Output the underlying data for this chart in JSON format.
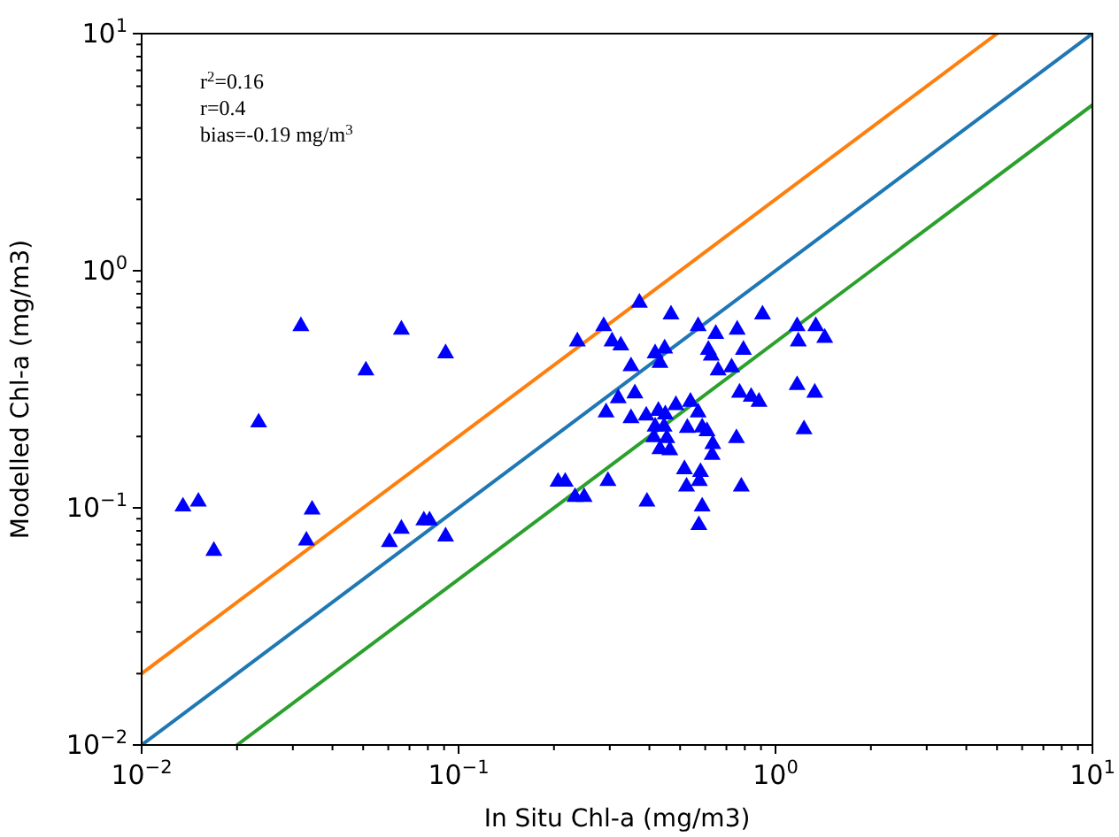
{
  "chart_data": {
    "type": "scatter",
    "xlabel": "In Situ Chl-a (mg/m3)",
    "ylabel": "Modelled Chl-a (mg/m3)",
    "log": "xy",
    "grid": false,
    "marker": "triangle",
    "annotations": [
      "r$^{2}$=0.16",
      "r=0.4",
      "bias=-0.19 mg/m$^{3}$"
    ],
    "xlim": [
      0.01,
      10
    ],
    "ylim": [
      0.01,
      10
    ],
    "xticks": [
      {
        "value": 0.01,
        "label": "10$^{−2}$"
      },
      {
        "value": 0.02,
        "label": null
      },
      {
        "value": 0.03,
        "label": null
      },
      {
        "value": 0.04,
        "label": null
      },
      {
        "value": 0.05,
        "label": null
      },
      {
        "value": 0.06,
        "label": null
      },
      {
        "value": 0.07,
        "label": null
      },
      {
        "value": 0.08,
        "label": null
      },
      {
        "value": 0.09,
        "label": null
      },
      {
        "value": 0.1,
        "label": "10$^{−1}$"
      },
      {
        "value": 0.2,
        "label": null
      },
      {
        "value": 0.3,
        "label": null
      },
      {
        "value": 0.4,
        "label": null
      },
      {
        "value": 0.5,
        "label": null
      },
      {
        "value": 0.6,
        "label": null
      },
      {
        "value": 0.7,
        "label": null
      },
      {
        "value": 0.8,
        "label": null
      },
      {
        "value": 0.9,
        "label": null
      },
      {
        "value": 1,
        "label": "10$^{0}$"
      },
      {
        "value": 2,
        "label": null
      },
      {
        "value": 3,
        "label": null
      },
      {
        "value": 4,
        "label": null
      },
      {
        "value": 5,
        "label": null
      },
      {
        "value": 6,
        "label": null
      },
      {
        "value": 7,
        "label": null
      },
      {
        "value": 8,
        "label": null
      },
      {
        "value": 9,
        "label": null
      },
      {
        "value": 10,
        "label": "10$^{1}$"
      }
    ],
    "yticks": [
      {
        "value": 0.01,
        "label": "10$^{−2}$"
      },
      {
        "value": 0.02,
        "label": null
      },
      {
        "value": 0.03,
        "label": null
      },
      {
        "value": 0.04,
        "label": null
      },
      {
        "value": 0.05,
        "label": null
      },
      {
        "value": 0.06,
        "label": null
      },
      {
        "value": 0.07,
        "label": null
      },
      {
        "value": 0.08,
        "label": null
      },
      {
        "value": 0.09,
        "label": null
      },
      {
        "value": 0.1,
        "label": "10$^{−1}$"
      },
      {
        "value": 0.2,
        "label": null
      },
      {
        "value": 0.3,
        "label": null
      },
      {
        "value": 0.4,
        "label": null
      },
      {
        "value": 0.5,
        "label": null
      },
      {
        "value": 0.6,
        "label": null
      },
      {
        "value": 0.7,
        "label": null
      },
      {
        "value": 0.8,
        "label": null
      },
      {
        "value": 0.9,
        "label": null
      },
      {
        "value": 1,
        "label": "10$^{0}$"
      },
      {
        "value": 2,
        "label": null
      },
      {
        "value": 3,
        "label": null
      },
      {
        "value": 4,
        "label": null
      },
      {
        "value": 5,
        "label": null
      },
      {
        "value": 6,
        "label": null
      },
      {
        "value": 7,
        "label": null
      },
      {
        "value": 8,
        "label": null
      },
      {
        "value": 9,
        "label": null
      },
      {
        "value": 10,
        "label": "10$^{1}$"
      }
    ],
    "series": [
      {
        "type": "line",
        "color": "#ff7f0e",
        "marker": "none",
        "x": [
          0.01,
          5
        ],
        "values": [
          0.02,
          10
        ]
      },
      {
        "type": "line",
        "color": "#1f77b4",
        "marker": "none",
        "x": [
          0.01,
          10
        ],
        "values": [
          0.01,
          10
        ]
      },
      {
        "type": "line",
        "color": "#2ca02c",
        "marker": "none",
        "x": [
          0.02,
          10
        ],
        "values": [
          0.01,
          5
        ]
      },
      {
        "color": "#0000ff",
        "x": [
          0.0135,
          0.0151,
          0.0169,
          0.0234,
          0.0318,
          0.0345,
          0.0331,
          0.051,
          0.066,
          0.091,
          0.0605,
          0.066,
          0.0777,
          0.081,
          0.091,
          0.372,
          0.468,
          0.287,
          0.237,
          0.305,
          0.325,
          0.57,
          0.648,
          0.757,
          0.91,
          1.17,
          1.34,
          1.43,
          1.18,
          0.792,
          0.614,
          0.627,
          0.417,
          0.447,
          0.432,
          0.35,
          0.659,
          0.727,
          0.77,
          0.838,
          0.887,
          1.17,
          1.33,
          1.23,
          0.319,
          0.36,
          0.292,
          0.35,
          0.391,
          0.427,
          0.485,
          0.539,
          0.57,
          0.449,
          0.417,
          0.445,
          0.527,
          0.587,
          0.608,
          0.413,
          0.454,
          0.432,
          0.464,
          0.634,
          0.631,
          0.753,
          0.516,
          0.58,
          0.575,
          0.524,
          0.78,
          0.296,
          0.206,
          0.217,
          0.233,
          0.249,
          0.393,
          0.587,
          0.573
        ],
        "values": [
          0.103,
          0.108,
          0.067,
          0.233,
          0.594,
          0.1,
          0.074,
          0.386,
          0.574,
          0.456,
          0.073,
          0.083,
          0.09,
          0.09,
          0.077,
          0.746,
          0.665,
          0.594,
          0.512,
          0.512,
          0.492,
          0.594,
          0.551,
          0.574,
          0.665,
          0.594,
          0.594,
          0.53,
          0.512,
          0.472,
          0.472,
          0.446,
          0.456,
          0.478,
          0.416,
          0.402,
          0.386,
          0.398,
          0.311,
          0.299,
          0.285,
          0.335,
          0.311,
          0.218,
          0.295,
          0.309,
          0.257,
          0.243,
          0.249,
          0.261,
          0.276,
          0.285,
          0.257,
          0.252,
          0.224,
          0.224,
          0.221,
          0.222,
          0.214,
          0.202,
          0.2,
          0.18,
          0.178,
          0.189,
          0.17,
          0.2,
          0.148,
          0.144,
          0.132,
          0.125,
          0.125,
          0.132,
          0.131,
          0.131,
          0.113,
          0.113,
          0.108,
          0.103,
          0.086
        ]
      }
    ]
  }
}
